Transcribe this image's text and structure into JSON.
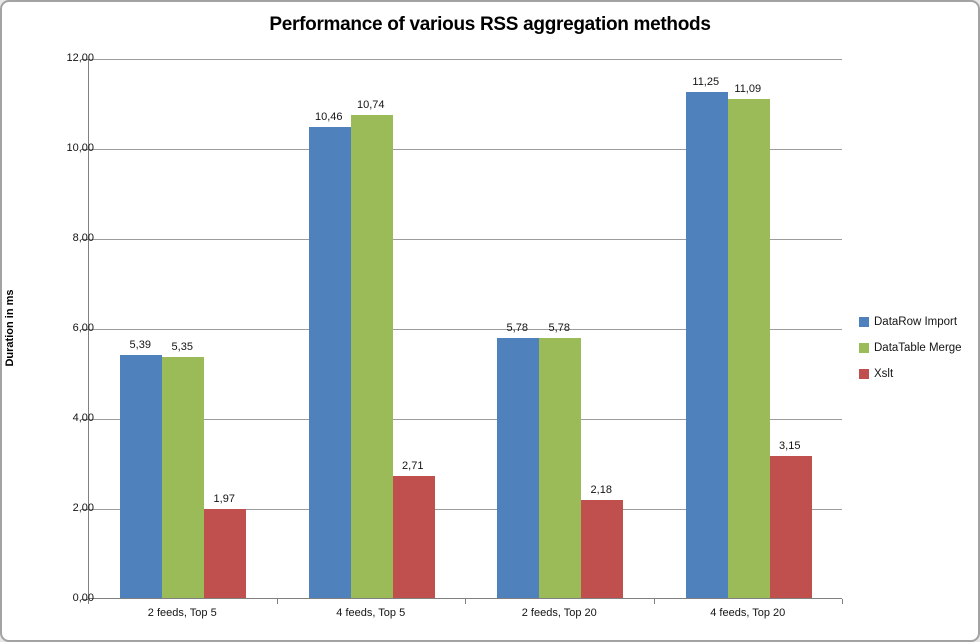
{
  "chart_data": {
    "type": "bar",
    "title": "Performance of various RSS aggregation methods",
    "xlabel": "",
    "ylabel": "Duration in ms",
    "categories": [
      "2 feeds, Top 5",
      "4 feeds, Top 5",
      "2 feeds, Top 20",
      "4 feeds, Top 20"
    ],
    "series": [
      {
        "name": "DataRow Import",
        "color": "#4F81BD",
        "values": [
          5.39,
          10.46,
          5.78,
          11.25
        ],
        "value_labels": [
          "5,39",
          "10,46",
          "5,78",
          "11,25"
        ]
      },
      {
        "name": "DataTable Merge",
        "color": "#9BBB59",
        "values": [
          5.35,
          10.74,
          5.78,
          11.09
        ],
        "value_labels": [
          "5,35",
          "10,74",
          "5,78",
          "11,09"
        ]
      },
      {
        "name": "Xslt",
        "color": "#C0504D",
        "values": [
          1.97,
          2.71,
          2.18,
          3.15
        ],
        "value_labels": [
          "1,97",
          "2,71",
          "2,18",
          "3,15"
        ]
      }
    ],
    "ylim": [
      0,
      12
    ],
    "ytick_step": 2,
    "ytick_labels": [
      "0,00",
      "2,00",
      "4,00",
      "6,00",
      "8,00",
      "10,00",
      "12,00"
    ],
    "grid": true,
    "legend_position": "right"
  },
  "style_colors": {
    "gridline": "#9c9c9c",
    "axis": "#808080",
    "frame_border": "#a3a3a3",
    "text": "#141414"
  }
}
